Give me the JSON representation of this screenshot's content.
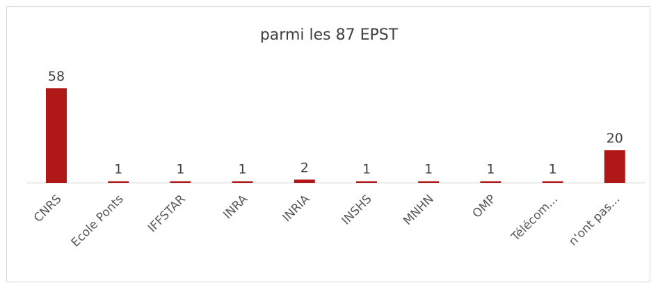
{
  "chart_data": {
    "type": "bar",
    "title": "parmi les 87 EPST",
    "categories": [
      "CNRS",
      "Ecole Ponts",
      "IFFSTAR",
      "INRA",
      "INRIA",
      "INSHS",
      "MNHN",
      "OMP",
      "Télécom...",
      "n'ont pas..."
    ],
    "values": [
      58,
      1,
      1,
      1,
      2,
      1,
      1,
      1,
      1,
      20
    ],
    "bar_color": "#b01717",
    "data_labels": true,
    "grid": false,
    "legend": "none"
  }
}
